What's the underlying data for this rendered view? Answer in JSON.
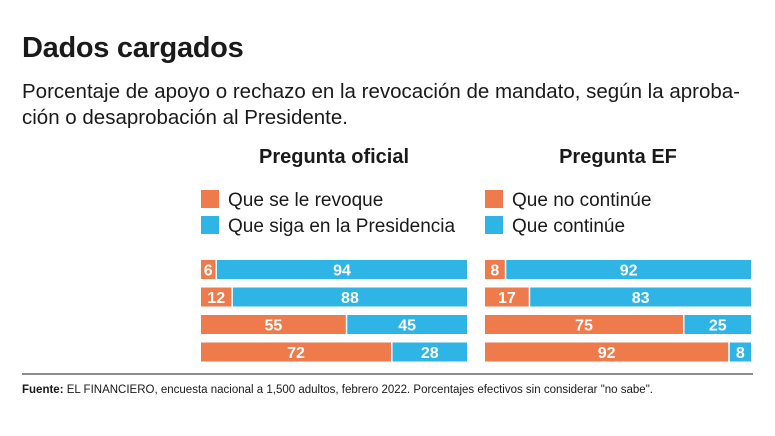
{
  "title": "Dados cargados",
  "subtitle": "Porcentaje de apoyo o rechazo en la revocación de mandato, según la aproba- ción o desaprobación al Presidente.",
  "colors": {
    "orange": "#ef7b4d",
    "blue": "#2fb4e6"
  },
  "chart_data": [
    {
      "type": "bar",
      "orientation": "horizontal",
      "stacked": true,
      "title": "Pregunta oficial",
      "legend": [
        "Que se le revoque",
        "Que siga en la Presidencia"
      ],
      "series": [
        {
          "name": "Que se le revoque",
          "color": "#ef7b4d",
          "values": [
            6,
            12,
            55,
            72
          ]
        },
        {
          "name": "Que siga en la Presidencia",
          "color": "#2fb4e6",
          "values": [
            94,
            88,
            45,
            28
          ]
        }
      ],
      "xlim": [
        0,
        100
      ]
    },
    {
      "type": "bar",
      "orientation": "horizontal",
      "stacked": true,
      "title": "Pregunta EF",
      "legend": [
        "Que no continúe",
        "Que continúe"
      ],
      "series": [
        {
          "name": "Que no continúe",
          "color": "#ef7b4d",
          "values": [
            8,
            17,
            75,
            92
          ]
        },
        {
          "name": "Que continúe",
          "color": "#2fb4e6",
          "values": [
            92,
            83,
            25,
            8
          ]
        }
      ],
      "xlim": [
        0,
        100
      ]
    }
  ],
  "footer": {
    "label": "Fuente:",
    "text": " EL FINANCIERO, encuesta nacional a 1,500 adultos, febrero 2022. Porcentajes efectivos sin considerar \"no sabe\"."
  }
}
